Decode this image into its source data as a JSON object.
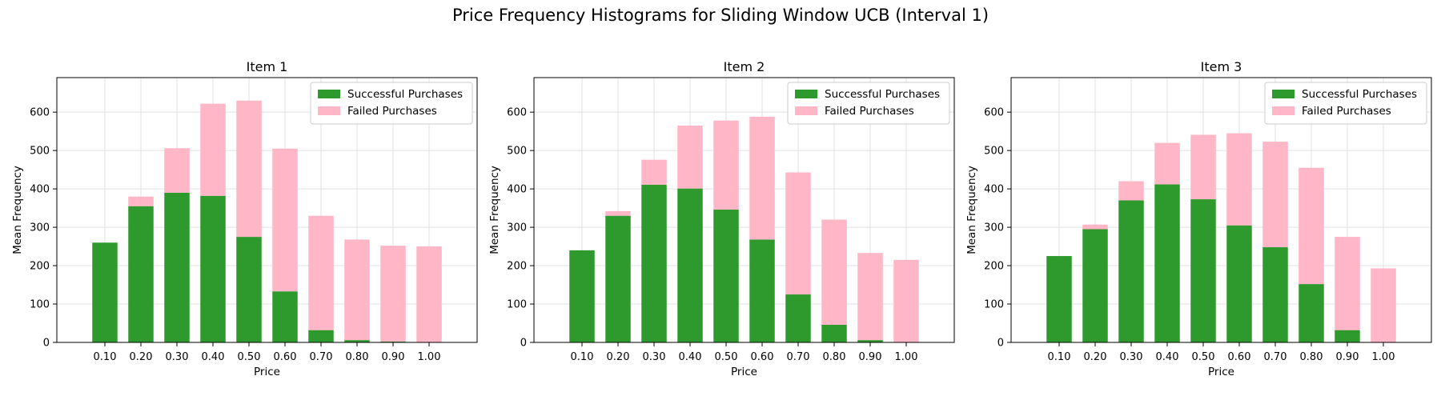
{
  "figure_title": "Price Frequency Histograms for Sliding Window UCB (Interval 1)",
  "colors": {
    "success": "#2e9a2e",
    "failure": "#ffb6c6",
    "grid": "#e0e0e0"
  },
  "chart_data": [
    {
      "type": "bar",
      "stacked": true,
      "title": "Item 1",
      "xlabel": "Price",
      "ylabel": "Mean Frequency",
      "ylim": [
        0,
        690
      ],
      "yticks": [
        0,
        100,
        200,
        300,
        400,
        500,
        600
      ],
      "grid": true,
      "legend_position": "top-right",
      "categories": [
        "0.10",
        "0.20",
        "0.30",
        "0.40",
        "0.50",
        "0.60",
        "0.70",
        "0.80",
        "0.90",
        "1.00"
      ],
      "series": [
        {
          "name": "Successful Purchases",
          "values": [
            260,
            355,
            390,
            382,
            275,
            133,
            32,
            6,
            2,
            0
          ]
        },
        {
          "name": "Failed Purchases",
          "values": [
            0,
            25,
            116,
            240,
            355,
            372,
            298,
            262,
            250,
            250
          ]
        }
      ]
    },
    {
      "type": "bar",
      "stacked": true,
      "title": "Item 2",
      "xlabel": "Price",
      "ylabel": "Mean Frequency",
      "ylim": [
        0,
        690
      ],
      "yticks": [
        0,
        100,
        200,
        300,
        400,
        500,
        600
      ],
      "grid": true,
      "legend_position": "top-right",
      "categories": [
        "0.10",
        "0.20",
        "0.30",
        "0.40",
        "0.50",
        "0.60",
        "0.70",
        "0.80",
        "0.90",
        "1.00"
      ],
      "series": [
        {
          "name": "Successful Purchases",
          "values": [
            240,
            330,
            411,
            401,
            346,
            268,
            125,
            46,
            6,
            0
          ]
        },
        {
          "name": "Failed Purchases",
          "values": [
            0,
            12,
            65,
            164,
            232,
            320,
            318,
            274,
            227,
            215
          ]
        }
      ]
    },
    {
      "type": "bar",
      "stacked": true,
      "title": "Item 3",
      "xlabel": "Price",
      "ylabel": "Mean Frequency",
      "ylim": [
        0,
        690
      ],
      "yticks": [
        0,
        100,
        200,
        300,
        400,
        500,
        600
      ],
      "grid": true,
      "legend_position": "top-right",
      "categories": [
        "0.10",
        "0.20",
        "0.30",
        "0.40",
        "0.50",
        "0.60",
        "0.70",
        "0.80",
        "0.90",
        "1.00"
      ],
      "series": [
        {
          "name": "Successful Purchases",
          "values": [
            225,
            295,
            370,
            412,
            373,
            305,
            248,
            152,
            32,
            0
          ]
        },
        {
          "name": "Failed Purchases",
          "values": [
            0,
            12,
            50,
            108,
            168,
            240,
            275,
            303,
            243,
            193
          ]
        }
      ]
    }
  ]
}
